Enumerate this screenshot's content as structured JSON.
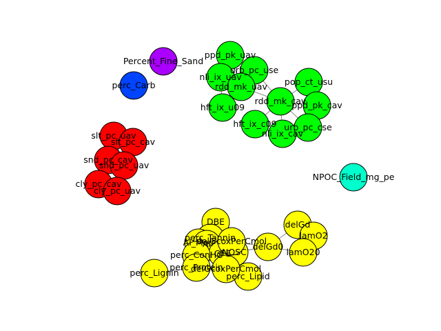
{
  "graph": {
    "colors": {
      "green": "#00ff00",
      "red": "#ff0000",
      "yellow": "#ffff00",
      "purple": "#aa00ff",
      "blue": "#0044ff",
      "cyan": "#00ffcc"
    },
    "nodes": [
      {
        "id": "Percent_Fine_Sand",
        "label": "Percent_Fine_Sand",
        "group": "purple"
      },
      {
        "id": "perc_Carb",
        "label": "perc_Carb",
        "group": "blue"
      },
      {
        "id": "NPOC_Field_mg_per",
        "label": "NPOC_Field_mg_pe",
        "group": "cyan"
      },
      {
        "id": "ppd_pk_uav",
        "label": "ppd_pk_uav",
        "group": "green"
      },
      {
        "id": "nli_ix_uav",
        "label": "nli_ix_uav",
        "group": "green"
      },
      {
        "id": "urb_pc_use",
        "label": "urb_pc_use",
        "group": "green"
      },
      {
        "id": "rdd_mk_uav",
        "label": "rdd_mk_uav",
        "group": "green"
      },
      {
        "id": "pop_ct_usu",
        "label": "pop_ct_usu",
        "group": "green"
      },
      {
        "id": "rdd_mk_cav",
        "label": "rdd_mk_cav",
        "group": "green"
      },
      {
        "id": "ppd_pk_cav",
        "label": "ppd_pk_cav",
        "group": "green"
      },
      {
        "id": "hft_ix_u09",
        "label": "hft_ix_u09",
        "group": "green"
      },
      {
        "id": "hft_ix_c09",
        "label": "hft_ix_c09",
        "group": "green"
      },
      {
        "id": "nli_ix_cav",
        "label": "nli_ix_cav",
        "group": "green"
      },
      {
        "id": "urb_pc_cse",
        "label": "urb_pc_cse",
        "group": "green"
      },
      {
        "id": "slt_pc_uav",
        "label": "slt_pc_uav",
        "group": "red"
      },
      {
        "id": "slt_pc_cav",
        "label": "slt_pc_cav",
        "group": "red"
      },
      {
        "id": "snd_pc_cav",
        "label": "snd_pc_cav",
        "group": "red"
      },
      {
        "id": "snd_pc_uav",
        "label": "snd_pc_uav",
        "group": "red"
      },
      {
        "id": "cly_pc_cav",
        "label": "cly_pc_cav",
        "group": "red"
      },
      {
        "id": "cly_pc_uav",
        "label": "cly_pc_uav",
        "group": "red"
      },
      {
        "id": "DBE",
        "label": "DBE",
        "group": "yellow"
      },
      {
        "id": "delGd",
        "label": "delGd",
        "group": "yellow"
      },
      {
        "id": "lamO2",
        "label": "lamO2",
        "group": "yellow"
      },
      {
        "id": "lamO20",
        "label": "lamO20",
        "group": "yellow"
      },
      {
        "id": "delGd0",
        "label": "delGd0",
        "group": "yellow"
      },
      {
        "id": "perc_Lignin",
        "label": "perc_Lignin",
        "group": "yellow"
      },
      {
        "id": "perc_Lipid",
        "label": "perc_Lipid",
        "group": "yellow"
      },
      {
        "id": "perc_Tannin",
        "label": "perc_Tannin",
        "group": "yellow"
      },
      {
        "id": "AI_Mod",
        "label": "AI_Mod",
        "group": "yellow"
      },
      {
        "id": "AI",
        "label": "AI",
        "group": "yellow"
      },
      {
        "id": "GFE",
        "label": "GFE",
        "group": "yellow"
      },
      {
        "id": "NOSC",
        "label": "NOSC",
        "group": "yellow"
      },
      {
        "id": "perc_ConHC",
        "label": "perc_ConHC",
        "group": "yellow"
      },
      {
        "id": "perc_Protein",
        "label": "perc_Protein",
        "group": "yellow"
      },
      {
        "id": "delGcoxPerCmol",
        "label": "delGcoxPerCmol",
        "group": "yellow"
      },
      {
        "id": "delGcoxPerCmol2",
        "label": "delGcoxPerCmol",
        "group": "yellow"
      }
    ],
    "edges": [
      [
        "ppd_pk_uav",
        "nli_ix_uav"
      ],
      [
        "ppd_pk_uav",
        "urb_pc_use"
      ],
      [
        "ppd_pk_uav",
        "rdd_mk_uav"
      ],
      [
        "nli_ix_uav",
        "urb_pc_use"
      ],
      [
        "nli_ix_uav",
        "rdd_mk_uav"
      ],
      [
        "urb_pc_use",
        "rdd_mk_uav"
      ],
      [
        "rdd_mk_uav",
        "hft_ix_u09"
      ],
      [
        "rdd_mk_uav",
        "rdd_mk_cav"
      ],
      [
        "nli_ix_uav",
        "hft_ix_u09"
      ],
      [
        "pop_ct_usu",
        "rdd_mk_cav"
      ],
      [
        "pop_ct_usu",
        "ppd_pk_cav"
      ],
      [
        "rdd_mk_cav",
        "ppd_pk_cav"
      ],
      [
        "rdd_mk_cav",
        "hft_ix_c09"
      ],
      [
        "rdd_mk_cav",
        "nli_ix_cav"
      ],
      [
        "rdd_mk_cav",
        "urb_pc_cse"
      ],
      [
        "hft_ix_c09",
        "nli_ix_cav"
      ],
      [
        "nli_ix_cav",
        "urb_pc_cse"
      ],
      [
        "ppd_pk_cav",
        "urb_pc_cse"
      ],
      [
        "urb_pc_use",
        "rdd_mk_cav"
      ],
      [
        "slt_pc_uav",
        "slt_pc_cav"
      ],
      [
        "slt_pc_uav",
        "snd_pc_cav"
      ],
      [
        "slt_pc_cav",
        "snd_pc_uav"
      ],
      [
        "snd_pc_cav",
        "snd_pc_uav"
      ],
      [
        "snd_pc_cav",
        "cly_pc_cav"
      ],
      [
        "snd_pc_uav",
        "cly_pc_uav"
      ],
      [
        "cly_pc_cav",
        "cly_pc_uav"
      ],
      [
        "slt_pc_uav",
        "snd_pc_uav"
      ],
      [
        "delGd",
        "lamO2"
      ],
      [
        "delGd",
        "lamO20"
      ],
      [
        "lamO2",
        "lamO20"
      ],
      [
        "delGd",
        "delGd0"
      ],
      [
        "delGd0",
        "lamO20"
      ],
      [
        "delGd0",
        "GFE"
      ],
      [
        "delGd0",
        "delGcoxPerCmol"
      ],
      [
        "delGd0",
        "NOSC"
      ],
      [
        "DBE",
        "perc_Tannin"
      ],
      [
        "DBE",
        "AI_Mod"
      ],
      [
        "perc_Tannin",
        "AI_Mod"
      ],
      [
        "AI_Mod",
        "AI"
      ],
      [
        "AI",
        "GFE"
      ],
      [
        "GFE",
        "NOSC"
      ],
      [
        "NOSC",
        "delGcoxPerCmol"
      ],
      [
        "perc_ConHC",
        "perc_Protein"
      ],
      [
        "perc_Protein",
        "delGcoxPerCmol2"
      ],
      [
        "delGcoxPerCmol2",
        "perc_Lipid"
      ],
      [
        "perc_Lignin",
        "perc_Protein"
      ],
      [
        "perc_ConHC",
        "AI"
      ],
      [
        "delGcoxPerCmol2",
        "NOSC"
      ],
      [
        "perc_Protein",
        "GFE"
      ]
    ]
  }
}
